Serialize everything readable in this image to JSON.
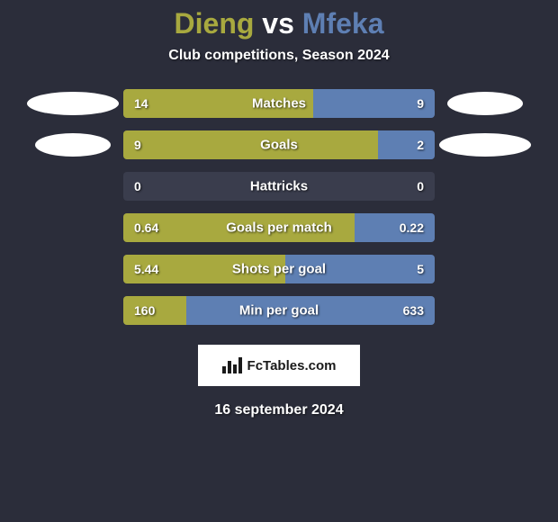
{
  "title": {
    "player1": "Dieng",
    "vs": "vs",
    "player2": "Mfeka"
  },
  "subtitle": "Club competitions, Season 2024",
  "colors": {
    "player1": "#a8a93f",
    "player2": "#5e7fb3",
    "bar_bg": "#3a3d4d",
    "page_bg": "#2b2d3a",
    "text": "#ffffff"
  },
  "bars": [
    {
      "label": "Matches",
      "left": "14",
      "right": "9",
      "left_pct": 60.9,
      "right_pct": 39.1,
      "avatar_left": true,
      "avatar_right": true,
      "avatar_left_size": "large",
      "avatar_right_size": "small"
    },
    {
      "label": "Goals",
      "left": "9",
      "right": "2",
      "left_pct": 81.8,
      "right_pct": 18.2,
      "avatar_left": true,
      "avatar_right": true,
      "avatar_left_size": "small",
      "avatar_right_size": "large"
    },
    {
      "label": "Hattricks",
      "left": "0",
      "right": "0",
      "left_pct": 0,
      "right_pct": 0,
      "avatar_left": false,
      "avatar_right": false
    },
    {
      "label": "Goals per match",
      "left": "0.64",
      "right": "0.22",
      "left_pct": 74.4,
      "right_pct": 25.6,
      "avatar_left": false,
      "avatar_right": false
    },
    {
      "label": "Shots per goal",
      "left": "5.44",
      "right": "5",
      "left_pct": 52.1,
      "right_pct": 47.9,
      "avatar_left": false,
      "avatar_right": false
    },
    {
      "label": "Min per goal",
      "left": "160",
      "right": "633",
      "left_pct": 20.2,
      "right_pct": 79.8,
      "avatar_left": false,
      "avatar_right": false
    }
  ],
  "footer": {
    "site": "FcTables.com"
  },
  "date": "16 september 2024"
}
